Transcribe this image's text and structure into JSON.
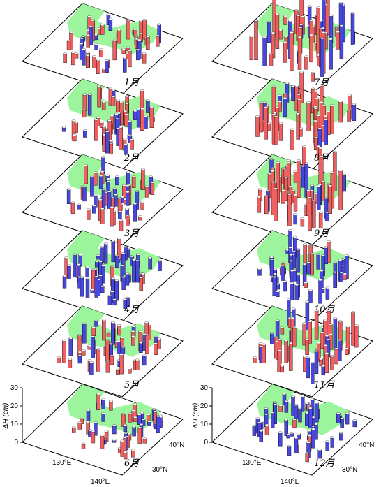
{
  "chart_data": {
    "type": "3d-bar-map",
    "colors": {
      "positive": "#f06060",
      "negative": "#4848e0",
      "land": "#9cf59c"
    },
    "z_axis": {
      "label": "ΔH (cm)",
      "ticks": [
        "0",
        "10",
        "20",
        "30"
      ],
      "range": [
        0,
        30
      ]
    },
    "lon_ticks": [
      "130°E",
      "140°E"
    ],
    "lat_ticks": [
      "30°N",
      "40°N"
    ],
    "panels": [
      {
        "month": "1月",
        "pos": 0.7,
        "neg": 0.25,
        "max": 12
      },
      {
        "month": "2月",
        "pos": 0.65,
        "neg": 0.3,
        "max": 14
      },
      {
        "month": "3月",
        "pos": 0.6,
        "neg": 0.35,
        "max": 13
      },
      {
        "month": "4月",
        "pos": 0.2,
        "neg": 0.75,
        "max": 14
      },
      {
        "month": "5月",
        "pos": 0.75,
        "neg": 0.25,
        "max": 14
      },
      {
        "month": "6月",
        "pos": 0.6,
        "neg": 0.4,
        "max": 10
      },
      {
        "month": "7月",
        "pos": 0.65,
        "neg": 0.35,
        "max": 30
      },
      {
        "month": "8月",
        "pos": 0.85,
        "neg": 0.15,
        "max": 20
      },
      {
        "month": "9月",
        "pos": 0.85,
        "neg": 0.15,
        "max": 24
      },
      {
        "month": "10月",
        "pos": 0.1,
        "neg": 0.9,
        "max": 14
      },
      {
        "month": "11月",
        "pos": 0.8,
        "neg": 0.2,
        "max": 20
      },
      {
        "month": "12月",
        "pos": 0.15,
        "neg": 0.85,
        "max": 12
      }
    ]
  }
}
